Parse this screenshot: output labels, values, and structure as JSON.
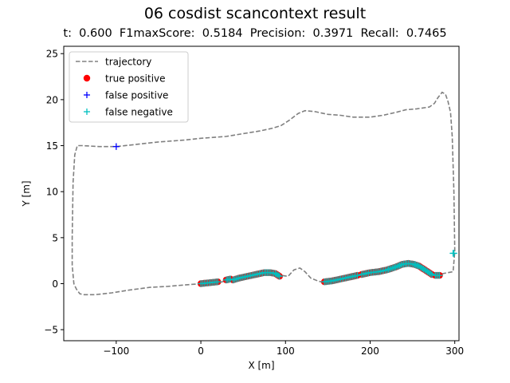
{
  "chart_data": {
    "type": "scatter",
    "title": "06 cosdist scancontext result",
    "subtitle": "t:  0.600  F1maxScore:  0.5184  Precision:  0.3971  Recall:  0.7465",
    "xlabel": "X [m]",
    "ylabel": "Y [m]",
    "xlim": [
      -162,
      305
    ],
    "ylim": [
      -6.2,
      25.8
    ],
    "xticks": [
      -100,
      0,
      100,
      200,
      300
    ],
    "xtick_labels": [
      "−100",
      "0",
      "100",
      "200",
      "300"
    ],
    "yticks": [
      -5,
      0,
      5,
      10,
      15,
      20,
      25
    ],
    "ytick_labels": [
      "−5",
      "0",
      "5",
      "10",
      "15",
      "20",
      "25"
    ],
    "grid": false,
    "legend_position": "upper-left",
    "colors": {
      "trajectory": "#808080",
      "true_positive": "#ff0000",
      "false_positive": "#0000ff",
      "false_negative": "#00bfbf"
    },
    "series": [
      {
        "name": "trajectory",
        "style": "dashed-line",
        "points": [
          [
            0,
            0
          ],
          [
            20,
            0.1
          ],
          [
            40,
            0.5
          ],
          [
            60,
            0.9
          ],
          [
            75,
            1.2
          ],
          [
            88,
            1.1
          ],
          [
            95,
            0.9
          ],
          [
            103,
            0.8
          ],
          [
            110,
            1.5
          ],
          [
            117,
            1.7
          ],
          [
            123,
            1.3
          ],
          [
            130,
            0.6
          ],
          [
            138,
            0.3
          ],
          [
            146,
            0.1
          ],
          [
            165,
            0.4
          ],
          [
            185,
            0.8
          ],
          [
            210,
            1.3
          ],
          [
            230,
            1.8
          ],
          [
            242,
            2.2
          ],
          [
            252,
            2.1
          ],
          [
            262,
            1.7
          ],
          [
            272,
            1.2
          ],
          [
            280,
            1.0
          ],
          [
            292,
            1.2
          ],
          [
            298,
            1.3
          ],
          [
            300,
            3.5
          ],
          [
            299,
            10.0
          ],
          [
            297,
            16.0
          ],
          [
            295,
            18.6
          ],
          [
            292,
            19.8
          ],
          [
            289,
            20.6
          ],
          [
            285,
            20.8
          ],
          [
            280,
            20.2
          ],
          [
            276,
            19.6
          ],
          [
            270,
            19.2
          ],
          [
            255,
            19.0
          ],
          [
            242,
            18.9
          ],
          [
            230,
            18.6
          ],
          [
            215,
            18.3
          ],
          [
            200,
            18.1
          ],
          [
            180,
            18.1
          ],
          [
            165,
            18.3
          ],
          [
            150,
            18.4
          ],
          [
            135,
            18.7
          ],
          [
            123,
            18.8
          ],
          [
            115,
            18.5
          ],
          [
            105,
            17.8
          ],
          [
            95,
            17.2
          ],
          [
            85,
            16.9
          ],
          [
            70,
            16.6
          ],
          [
            50,
            16.3
          ],
          [
            30,
            16.0
          ],
          [
            0,
            15.8
          ],
          [
            -20,
            15.6
          ],
          [
            -50,
            15.4
          ],
          [
            -80,
            15.1
          ],
          [
            -100,
            14.9
          ],
          [
            -120,
            14.9
          ],
          [
            -140,
            15.0
          ],
          [
            -146,
            15.0
          ],
          [
            -149,
            14.0
          ],
          [
            -151,
            11.0
          ],
          [
            -152,
            5.0
          ],
          [
            -152,
            2.0
          ],
          [
            -150,
            0.0
          ],
          [
            -147,
            -0.6
          ],
          [
            -143,
            -1.1
          ],
          [
            -138,
            -1.2
          ],
          [
            -125,
            -1.2
          ],
          [
            -105,
            -1.0
          ],
          [
            -85,
            -0.7
          ],
          [
            -60,
            -0.4
          ],
          [
            -40,
            -0.3
          ],
          [
            -20,
            -0.15
          ],
          [
            0,
            0
          ]
        ]
      },
      {
        "name": "true positive",
        "style": "marker-o",
        "segments": [
          [
            [
              0,
              0
            ],
            [
              10,
              0.1
            ],
            [
              20,
              0.2
            ]
          ],
          [
            [
              30,
              0.4
            ],
            [
              35,
              0.5
            ]
          ],
          [
            [
              38,
              0.4
            ],
            [
              45,
              0.6
            ],
            [
              55,
              0.8
            ],
            [
              65,
              1.0
            ],
            [
              75,
              1.2
            ],
            [
              82,
              1.2
            ],
            [
              88,
              1.1
            ],
            [
              93,
              0.8
            ]
          ],
          [
            [
              146,
              0.2
            ],
            [
              155,
              0.3
            ],
            [
              165,
              0.5
            ],
            [
              175,
              0.7
            ],
            [
              185,
              0.9
            ]
          ],
          [
            [
              190,
              1.0
            ],
            [
              200,
              1.2
            ],
            [
              210,
              1.3
            ],
            [
              220,
              1.5
            ],
            [
              230,
              1.8
            ],
            [
              238,
              2.1
            ],
            [
              245,
              2.2
            ],
            [
              252,
              2.1
            ],
            [
              258,
              1.9
            ],
            [
              263,
              1.6
            ],
            [
              268,
              1.3
            ],
            [
              273,
              1.0
            ]
          ],
          [
            [
              277,
              0.9
            ],
            [
              282,
              0.9
            ]
          ]
        ]
      },
      {
        "name": "false positive",
        "style": "marker-plus",
        "points": [
          [
            -100,
            14.9
          ]
        ]
      },
      {
        "name": "false negative",
        "style": "marker-plus",
        "segments": [
          [
            [
              0,
              0
            ],
            [
              10,
              0.1
            ],
            [
              20,
              0.2
            ]
          ],
          [
            [
              30,
              0.4
            ],
            [
              35,
              0.5
            ]
          ],
          [
            [
              38,
              0.4
            ],
            [
              45,
              0.6
            ],
            [
              55,
              0.8
            ],
            [
              65,
              1.0
            ],
            [
              75,
              1.2
            ],
            [
              82,
              1.2
            ],
            [
              88,
              1.1
            ],
            [
              93,
              0.8
            ]
          ],
          [
            [
              146,
              0.2
            ],
            [
              155,
              0.3
            ],
            [
              165,
              0.5
            ],
            [
              175,
              0.7
            ],
            [
              185,
              0.9
            ]
          ],
          [
            [
              190,
              1.0
            ],
            [
              200,
              1.2
            ],
            [
              210,
              1.3
            ],
            [
              220,
              1.5
            ],
            [
              230,
              1.8
            ],
            [
              238,
              2.1
            ],
            [
              245,
              2.2
            ],
            [
              252,
              2.1
            ],
            [
              258,
              1.9
            ],
            [
              263,
              1.6
            ],
            [
              268,
              1.3
            ],
            [
              273,
              1.0
            ]
          ],
          [
            [
              277,
              0.9
            ],
            [
              282,
              0.9
            ]
          ],
          [
            [
              298,
              3.3
            ],
            [
              299,
              3.3
            ]
          ]
        ]
      }
    ]
  }
}
